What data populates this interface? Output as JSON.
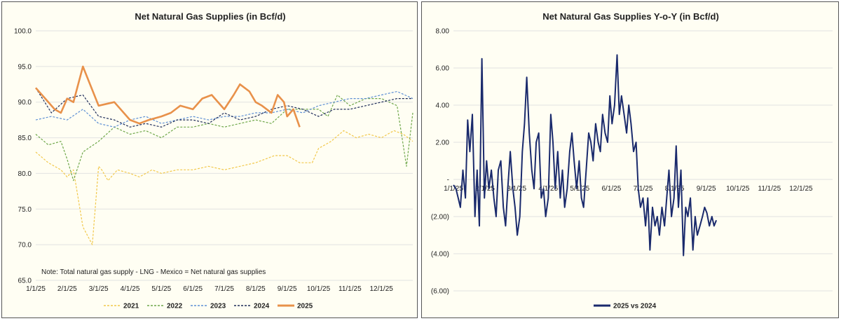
{
  "left_chart": {
    "title": "Net Natural Gas Supplies (in Bcf/d)",
    "note": "Note: Total natural gas supply - LNG - Mexico = Net natural gas supplies",
    "y_ticks": [
      "100.0",
      "95.0",
      "90.0",
      "85.0",
      "80.0",
      "75.0",
      "70.0",
      "65.0"
    ],
    "x_ticks": [
      "1/1/25",
      "2/1/25",
      "3/1/25",
      "4/1/25",
      "5/1/25",
      "6/1/25",
      "7/1/25",
      "8/1/25",
      "9/1/25",
      "10/1/25",
      "11/1/25",
      "12/1/25"
    ]
  },
  "right_chart": {
    "title": "Net Natural Gas Supplies Y-o-Y (in Bcf/d)",
    "y_ticks": [
      "8.00",
      "6.00",
      "4.00",
      "2.00",
      "-",
      "(2.00)",
      "(4.00)",
      "(6.00)"
    ],
    "x_ticks": [
      "1/1/25",
      "2/1/25",
      "3/1/25",
      "4/1/25",
      "5/1/25",
      "6/1/25",
      "7/1/25",
      "8/1/25",
      "9/1/25",
      "10/1/25",
      "11/1/25",
      "12/1/25"
    ]
  },
  "chart_data": [
    {
      "type": "line",
      "title": "Net Natural Gas Supplies (in Bcf/d)",
      "ylim": [
        65,
        100
      ],
      "x_unit": "month index (0 = 1/1/25, 11 = 12/1/25)",
      "xlim": [
        0,
        12
      ],
      "grid": true,
      "legend_position": "bottom",
      "series": [
        {
          "name": "2021",
          "color": "#f2c84b",
          "dash": "3,2",
          "width": 1.2,
          "x": [
            0,
            0.4,
            0.8,
            1,
            1.2,
            1.5,
            1.8,
            2,
            2.1,
            2.3,
            2.6,
            3,
            3.3,
            3.7,
            4,
            4.5,
            5,
            5.5,
            6,
            6.5,
            7,
            7.3,
            7.6,
            8,
            8.4,
            8.8,
            9,
            9.4,
            9.8,
            10.2,
            10.6,
            11,
            11.4,
            11.7,
            12
          ],
          "y": [
            83,
            81.5,
            80.5,
            79.5,
            80.5,
            72.5,
            70,
            81,
            80.5,
            79,
            80.5,
            80,
            79.5,
            80.5,
            80,
            80.5,
            80.5,
            81,
            80.5,
            81,
            81.5,
            82,
            82.5,
            82.5,
            81.5,
            81.5,
            83.5,
            84.5,
            86,
            85,
            85.5,
            85,
            86,
            85.5,
            84.5
          ]
        },
        {
          "name": "2022",
          "color": "#6ea74a",
          "dash": "3,2",
          "width": 1.2,
          "x": [
            0,
            0.4,
            0.8,
            1,
            1.2,
            1.5,
            2,
            2.5,
            3,
            3.5,
            4,
            4.5,
            5,
            5.5,
            6,
            6.5,
            7,
            7.5,
            8,
            8.5,
            9,
            9.3,
            9.6,
            10,
            10.5,
            11,
            11.5,
            11.8,
            12
          ],
          "y": [
            85.5,
            84,
            84.5,
            82,
            79,
            83,
            84.5,
            86.5,
            85.5,
            86,
            85,
            86.5,
            86.5,
            87,
            86.5,
            87,
            87.5,
            87,
            89,
            89,
            89,
            88,
            91,
            89.5,
            90.5,
            90.5,
            89.5,
            81,
            88.5
          ]
        },
        {
          "name": "2023",
          "color": "#5d8fd4",
          "dash": "3,2",
          "width": 1.2,
          "x": [
            0,
            0.5,
            1,
            1.5,
            2,
            2.5,
            3,
            3.5,
            4,
            4.5,
            5,
            5.5,
            6,
            6.5,
            7,
            7.5,
            8,
            8.5,
            9,
            9.5,
            10,
            10.5,
            11,
            11.5,
            12
          ],
          "y": [
            87.5,
            88,
            87.5,
            89,
            87,
            86.5,
            87.5,
            88,
            87,
            87.5,
            88,
            87.5,
            88,
            88,
            88.5,
            88.5,
            89,
            88.5,
            89.5,
            90,
            90.5,
            90.5,
            91,
            91.5,
            90.5
          ]
        },
        {
          "name": "2024",
          "color": "#1f2d5a",
          "dash": "3,2",
          "width": 1.2,
          "x": [
            0,
            0.5,
            1,
            1.5,
            2,
            2.5,
            3,
            3.5,
            4,
            4.5,
            5,
            5.5,
            6,
            6.5,
            7,
            7.5,
            8,
            8.5,
            9,
            9.5,
            10,
            10.5,
            11,
            11.5,
            12
          ],
          "y": [
            92,
            88.5,
            90.5,
            91,
            88,
            87.5,
            86.5,
            87,
            86.5,
            87.5,
            87.5,
            87,
            88.5,
            87.5,
            88,
            89,
            89.5,
            89,
            88,
            89,
            89,
            89.5,
            90,
            90.5,
            90.5
          ]
        },
        {
          "name": "2025",
          "color": "#e8914a",
          "dash": "",
          "width": 2.6,
          "x": [
            0,
            0.3,
            0.6,
            0.8,
            1,
            1.2,
            1.5,
            2,
            2.5,
            3,
            3.3,
            3.6,
            4,
            4.3,
            4.6,
            5,
            5.3,
            5.6,
            6,
            6.3,
            6.5,
            6.8,
            7,
            7.2,
            7.5,
            7.7,
            7.9,
            8,
            8.2,
            8.4
          ],
          "y": [
            92,
            90.5,
            89,
            88.5,
            90.5,
            90,
            95,
            89.5,
            90,
            87.5,
            87,
            87.5,
            88,
            88.5,
            89.5,
            89,
            90.5,
            91,
            89,
            91,
            92.5,
            91.5,
            90,
            89.5,
            88.5,
            91,
            90,
            88,
            89,
            86.5
          ]
        }
      ]
    },
    {
      "type": "line",
      "title": "Net Natural Gas Supplies Y-o-Y (in Bcf/d)",
      "ylim": [
        -6,
        8
      ],
      "x_unit": "month index (0 = 1/1/25, 11 = 12/1/25)",
      "xlim": [
        0,
        12
      ],
      "grid": true,
      "legend_position": "bottom",
      "series": [
        {
          "name": "2025 vs 2024",
          "color": "#1a2a6c",
          "x": [
            0,
            0.08,
            0.15,
            0.22,
            0.3,
            0.38,
            0.45,
            0.52,
            0.6,
            0.68,
            0.75,
            0.82,
            0.9,
            0.98,
            1.05,
            1.12,
            1.2,
            1.28,
            1.35,
            1.42,
            1.5,
            1.58,
            1.65,
            1.72,
            1.8,
            1.88,
            1.95,
            2.02,
            2.1,
            2.18,
            2.25,
            2.32,
            2.4,
            2.48,
            2.55,
            2.62,
            2.7,
            2.78,
            2.85,
            2.92,
            3,
            3.08,
            3.15,
            3.22,
            3.3,
            3.38,
            3.45,
            3.52,
            3.6,
            3.68,
            3.75,
            3.82,
            3.9,
            3.98,
            4.05,
            4.12,
            4.2,
            4.28,
            4.35,
            4.42,
            4.5,
            4.58,
            4.65,
            4.72,
            4.8,
            4.88,
            4.95,
            5.02,
            5.1,
            5.18,
            5.25,
            5.32,
            5.4,
            5.48,
            5.55,
            5.62,
            5.7,
            5.78,
            5.85,
            5.92,
            6,
            6.08,
            6.15,
            6.22,
            6.3,
            6.38,
            6.45,
            6.52,
            6.6,
            6.68,
            6.75,
            6.82,
            6.9,
            6.98,
            7.05,
            7.12,
            7.2,
            7.28,
            7.35,
            7.42,
            7.5,
            7.58,
            7.65,
            7.72,
            7.8,
            7.88,
            7.95,
            8.02,
            8.1,
            8.18,
            8.25,
            8.32
          ],
          "y": [
            -0.3,
            -0.5,
            -1,
            -1.5,
            0.5,
            -1,
            3.2,
            1.5,
            3.5,
            -2,
            0.5,
            -2.5,
            6.5,
            -1,
            1,
            -0.5,
            0.5,
            -1,
            -2,
            0.5,
            1,
            -1.5,
            -2.5,
            -0.5,
            1.5,
            -0.5,
            -1.5,
            -3,
            -2,
            1.5,
            3,
            5.5,
            2.5,
            0.5,
            -0.5,
            2,
            2.5,
            -1,
            -0.5,
            -2,
            -1,
            3.5,
            2,
            -0.5,
            1.5,
            -1,
            0.5,
            -1.5,
            -0.5,
            1.5,
            2.5,
            1,
            -0.5,
            1,
            -1,
            -1.5,
            0.5,
            2.5,
            2,
            1,
            3,
            2,
            1.5,
            3.5,
            2.5,
            2,
            4.5,
            3,
            4,
            6.7,
            3.5,
            4.5,
            3.5,
            2.5,
            4,
            3,
            1.5,
            2,
            -0.5,
            -1.5,
            -1,
            -2.5,
            -1,
            -3.8,
            -1.5,
            -2.5,
            -2,
            -3,
            -1.5,
            -2.5,
            -1,
            0.5,
            -2,
            -1,
            1.8,
            -1.5,
            0.5,
            -4.1,
            -1.5,
            -2,
            -1,
            -3.8,
            -2,
            -3,
            -2.5,
            -2,
            -1.5,
            -1.8,
            -2.5,
            -2,
            -2.5,
            -2.2
          ]
        }
      ]
    }
  ]
}
